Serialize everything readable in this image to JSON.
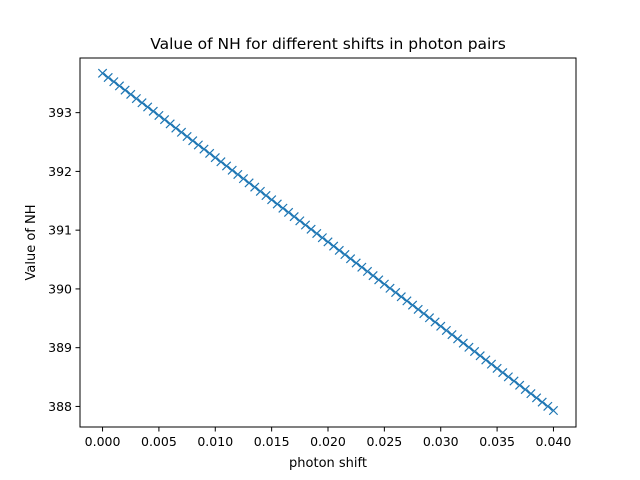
{
  "chart_data": {
    "type": "line",
    "title": "Value of NH for different shifts in photon pairs",
    "xlabel": "photon shift",
    "ylabel": "Value of NH",
    "xlim": [
      -0.002,
      0.042
    ],
    "ylim": [
      387.65,
      393.93
    ],
    "x_ticks": [
      0.0,
      0.005,
      0.01,
      0.015,
      0.02,
      0.025,
      0.03,
      0.035,
      0.04
    ],
    "x_tick_labels": [
      "0.000",
      "0.005",
      "0.010",
      "0.015",
      "0.020",
      "0.025",
      "0.030",
      "0.035",
      "0.040"
    ],
    "y_ticks": [
      388,
      389,
      390,
      391,
      392,
      393
    ],
    "y_tick_labels": [
      "388",
      "389",
      "390",
      "391",
      "392",
      "393"
    ],
    "grid": false,
    "legend": "none",
    "marker": "x",
    "color": "#1f77b4",
    "series": [
      {
        "x_start": 0.0,
        "x_end": 0.04,
        "x_step": 0.0005,
        "y_start": 393.67,
        "y_end": 387.93
      }
    ]
  }
}
